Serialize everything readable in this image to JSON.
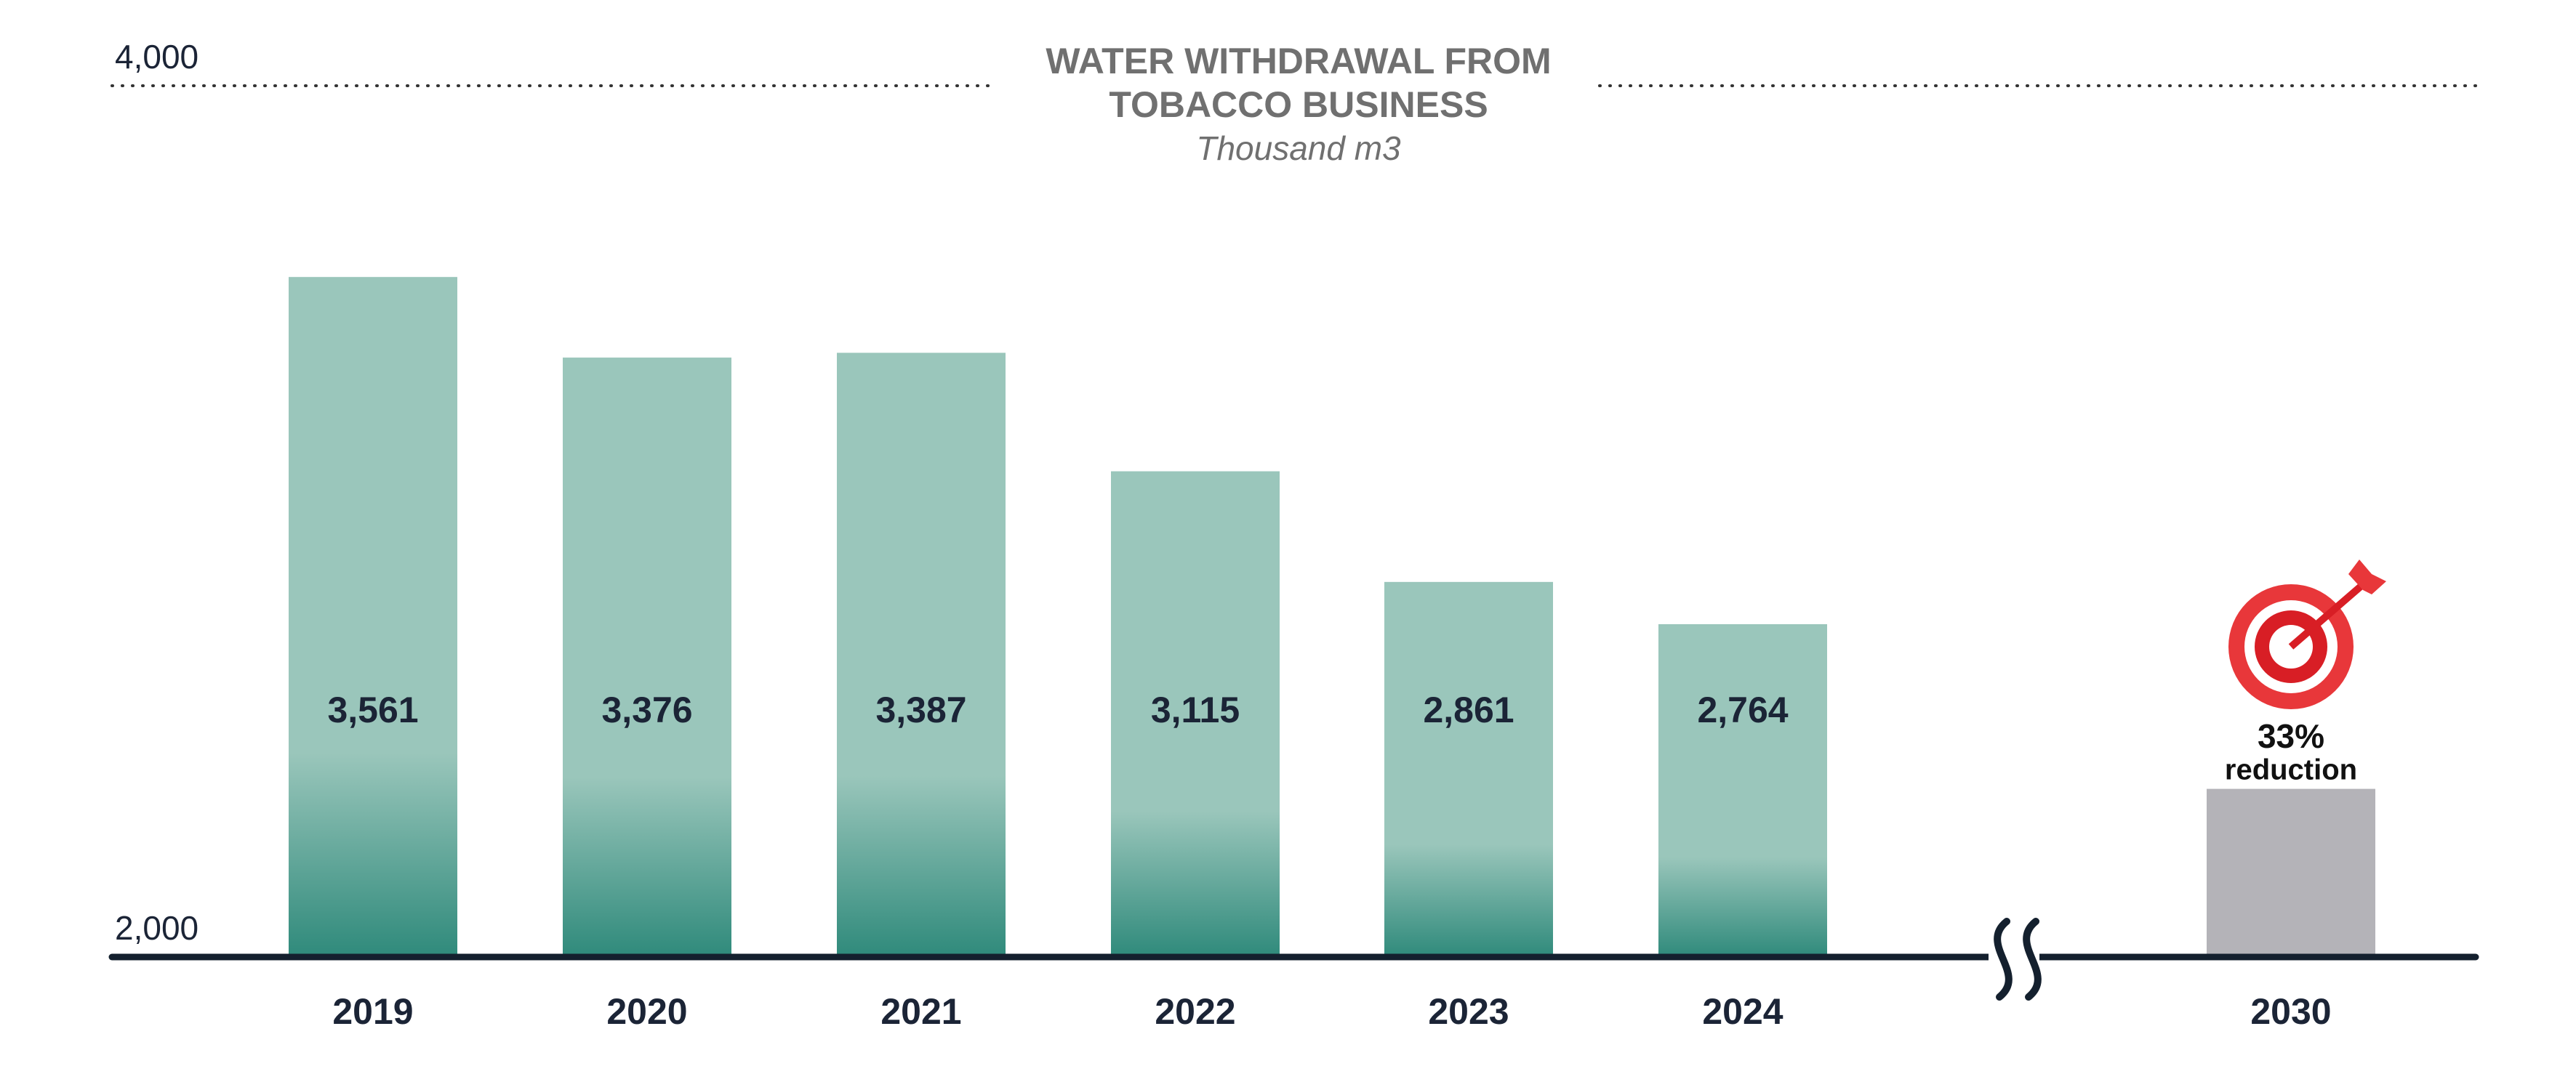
{
  "chart_data": {
    "type": "bar",
    "title": [
      "WATER WITHDRAWAL FROM",
      "TOBACCO BUSINESS"
    ],
    "subtitle": "Thousand m3",
    "categories": [
      "2019",
      "2020",
      "2021",
      "2022",
      "2023",
      "2024",
      "2030"
    ],
    "values": [
      3561,
      3376,
      3387,
      3115,
      2861,
      2764,
      2386
    ],
    "value_labels": [
      "3,561",
      "3,376",
      "3,387",
      "3,115",
      "2,861",
      "2,764",
      null
    ],
    "colors": [
      "#9ac6bb",
      "#9ac6bb",
      "#9ac6bb",
      "#9ac6bb",
      "#9ac6bb",
      "#9ac6bb",
      "#b4b3b8"
    ],
    "annotation": [
      "33%",
      "reduction"
    ],
    "ylim": [
      2000,
      4000
    ],
    "yticks": [
      {
        "value": 2000,
        "label": "2,000"
      },
      {
        "value": 4000,
        "label": "4,000"
      }
    ]
  }
}
